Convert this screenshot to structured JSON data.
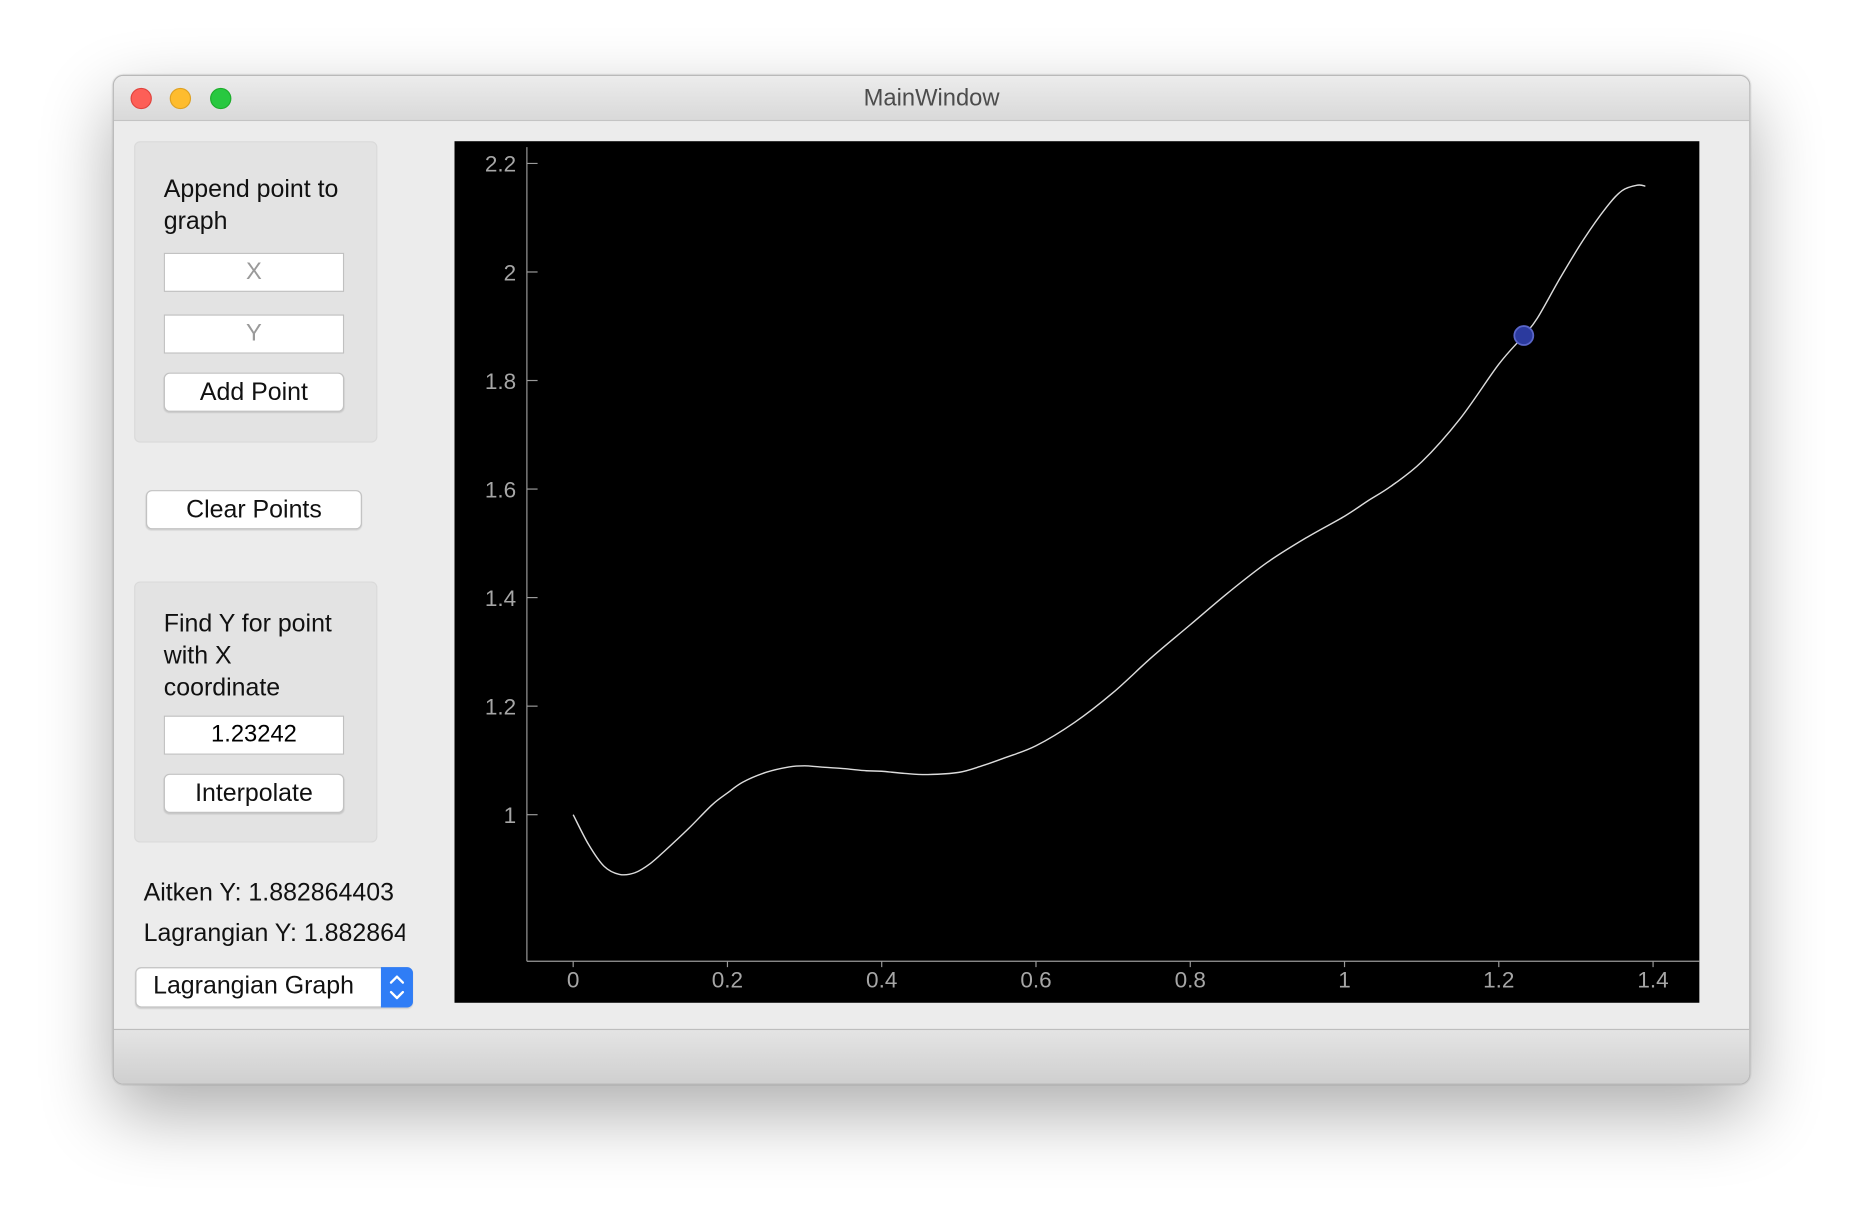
{
  "window": {
    "title": "MainWindow"
  },
  "append_group": {
    "title": "Append point to graph",
    "x_placeholder": "X",
    "y_placeholder": "Y",
    "add_button": "Add Point"
  },
  "clear_button": "Clear Points",
  "find_group": {
    "title": "Find Y for point with X coordinate",
    "x_value": "1.23242",
    "interpolate_button": "Interpolate"
  },
  "results": {
    "aitken": "Aitken Y: 1.882864403",
    "lagrangian": "Lagrangian Y: 1.882864"
  },
  "graph_mode": {
    "selected": "Lagrangian Graph"
  },
  "colors": {
    "plot_background": "#000000",
    "curve": "#dcdcdc",
    "axis": "#9a9a9a",
    "marker": "#2b3a9e",
    "selector_accent": "#2f7df6"
  },
  "chart_data": {
    "type": "line",
    "title": "",
    "xlabel": "",
    "ylabel": "",
    "xlim": [
      -0.06,
      1.46
    ],
    "ylim": [
      0.73,
      2.23
    ],
    "x_ticks": [
      "0",
      "0.2",
      "0.4",
      "0.6",
      "0.8",
      "1",
      "1.2",
      "1.4"
    ],
    "y_ticks": [
      "1",
      "1.2",
      "1.4",
      "1.6",
      "1.8",
      "2",
      "2.2"
    ],
    "grid": false,
    "series": [
      {
        "x": [
          0,
          0.02,
          0.04,
          0.06,
          0.08,
          0.1,
          0.12,
          0.15,
          0.18,
          0.2,
          0.22,
          0.25,
          0.28,
          0.3,
          0.32,
          0.35,
          0.38,
          0.4,
          0.43,
          0.46,
          0.5,
          0.53,
          0.56,
          0.6,
          0.65,
          0.7,
          0.75,
          0.8,
          0.85,
          0.9,
          0.95,
          1,
          1.03,
          1.06,
          1.1,
          1.15,
          1.2,
          1.23242,
          1.25,
          1.28,
          1.31,
          1.34,
          1.36,
          1.38,
          1.39
        ],
        "y": [
          1.0,
          0.945,
          0.905,
          0.89,
          0.893,
          0.91,
          0.935,
          0.975,
          1.018,
          1.04,
          1.06,
          1.078,
          1.088,
          1.09,
          1.088,
          1.085,
          1.081,
          1.08,
          1.076,
          1.074,
          1.078,
          1.09,
          1.105,
          1.127,
          1.17,
          1.225,
          1.29,
          1.35,
          1.41,
          1.465,
          1.51,
          1.55,
          1.578,
          1.605,
          1.65,
          1.73,
          1.83,
          1.88286,
          1.915,
          1.99,
          2.06,
          2.12,
          2.15,
          2.16,
          2.158
        ]
      }
    ],
    "marker": {
      "x": 1.23242,
      "y": 1.88286
    }
  }
}
